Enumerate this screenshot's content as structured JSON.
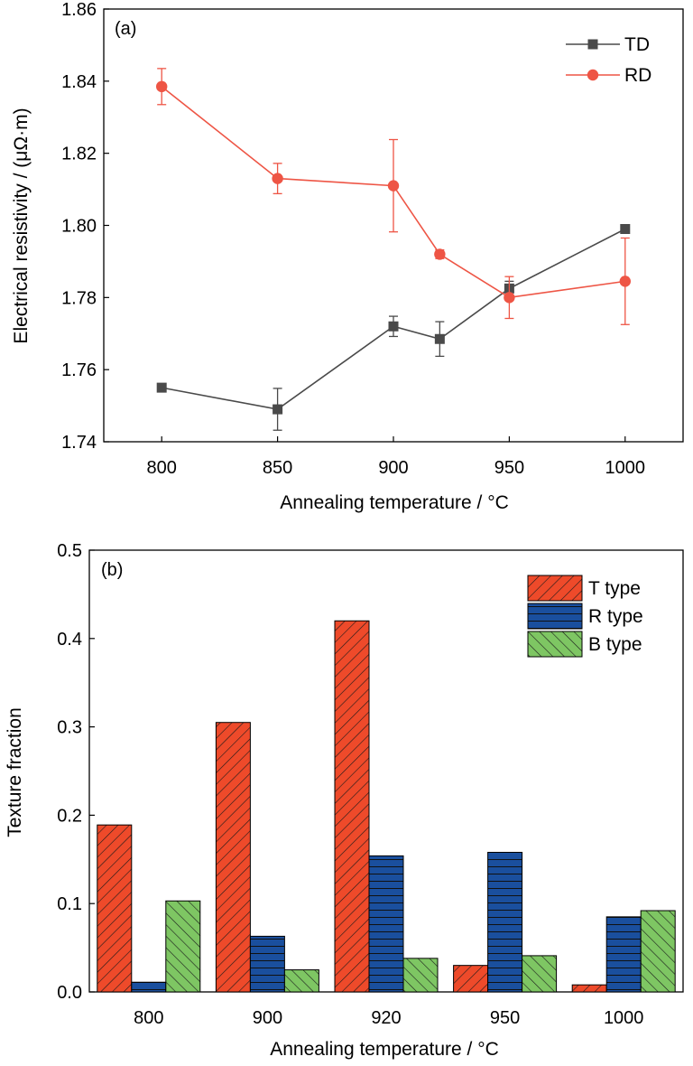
{
  "chart_data": [
    {
      "type": "line",
      "panel_label": "(a)",
      "xlabel": "Annealing temperature / °C",
      "ylabel": "Electrical resistivity / (μΩ·m)",
      "xlim": [
        775,
        1025
      ],
      "ylim": [
        1.74,
        1.86
      ],
      "x": [
        800,
        850,
        900,
        920,
        950,
        1000
      ],
      "x_tick_labels": [
        "800",
        "850",
        "900",
        "950",
        "1000"
      ],
      "y_tick_labels": [
        "1.74",
        "1.76",
        "1.78",
        "1.80",
        "1.82",
        "1.84",
        "1.86"
      ],
      "legend_position": "top-right",
      "series": [
        {
          "name": "TD",
          "color": "#4a4a4a",
          "marker": "square",
          "values": [
            1.755,
            1.749,
            1.772,
            1.7685,
            1.7825,
            1.799
          ],
          "errors": [
            0.0008,
            0.0058,
            0.0028,
            0.0048,
            0.002,
            0.0012
          ]
        },
        {
          "name": "RD",
          "color": "#ee5545",
          "marker": "circle",
          "values": [
            1.8385,
            1.813,
            1.811,
            1.792,
            1.78,
            1.7845
          ],
          "errors": [
            0.005,
            0.0042,
            0.0128,
            0.0012,
            0.0058,
            0.012
          ]
        }
      ]
    },
    {
      "type": "bar",
      "panel_label": "(b)",
      "xlabel": "Annealing temperature / °C",
      "ylabel": "Texture fraction",
      "ylim": [
        0,
        0.5
      ],
      "categories": [
        "800",
        "900",
        "920",
        "950",
        "1000"
      ],
      "y_tick_labels": [
        "0.0",
        "0.1",
        "0.2",
        "0.3",
        "0.4",
        "0.5"
      ],
      "legend_position": "top-right",
      "series": [
        {
          "name": "T type",
          "color": "#ee4a2a",
          "hatch": "diagonal-up",
          "values": [
            0.189,
            0.305,
            0.42,
            0.03,
            0.008
          ]
        },
        {
          "name": "R type",
          "color": "#1a4f9e",
          "hatch": "horizontal",
          "values": [
            0.011,
            0.063,
            0.154,
            0.158,
            0.085
          ]
        },
        {
          "name": "B type",
          "color": "#7ec663",
          "hatch": "diagonal-down",
          "values": [
            0.103,
            0.025,
            0.038,
            0.041,
            0.092
          ]
        }
      ]
    }
  ]
}
